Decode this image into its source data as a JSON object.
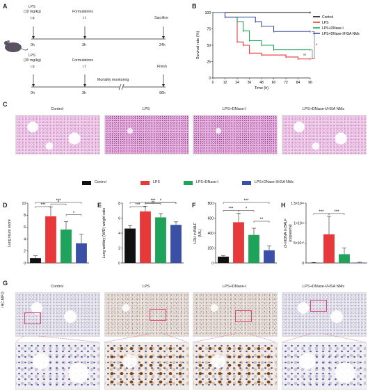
{
  "panels": {
    "a": "A",
    "b": "B",
    "c": "C",
    "d": "D",
    "e": "E",
    "f": "F",
    "g": "G",
    "h": "H"
  },
  "colors": {
    "control": "#111111",
    "lps": "#e8393a",
    "dnase": "#1fa35b",
    "nms": "#3a4fa6",
    "roi": "#e0457a"
  },
  "schematic": {
    "row1": {
      "agent": "LPS",
      "dose": "(10 mg/kg)",
      "route1": "i.p",
      "t0": "0h",
      "form": "Formulations",
      "route2": "i.t",
      "t1": "3h",
      "end": "Sacrifice",
      "t2": "24h"
    },
    "row2": {
      "agent": "LPS",
      "dose": "(30 mg/kg)",
      "route1": "i.p",
      "t0": "0h",
      "form": "Formulations",
      "route2": "i.t",
      "t1": "3h",
      "mid": "Mortality monitoring",
      "end": "Finish",
      "t2": "96h"
    }
  },
  "groups": [
    "Control",
    "LPS",
    "LPS+DNase-I",
    "LPS+DNase-I/HSA NMs"
  ],
  "ihc_label": "IHC-MPO",
  "chart_data": [
    {
      "id": "B",
      "type": "line",
      "xlabel": "Time (h)",
      "ylabel": "Survival rate (%)",
      "xlim": [
        0,
        96
      ],
      "ylim": [
        0,
        100
      ],
      "xticks": [
        0,
        12,
        24,
        36,
        48,
        60,
        72,
        84,
        96
      ],
      "yticks": [
        0,
        25,
        50,
        75,
        100
      ],
      "legend": "top-right",
      "series": [
        {
          "name": "Control",
          "points": [
            [
              0,
              100
            ],
            [
              96,
              100
            ]
          ]
        },
        {
          "name": "LPS",
          "points": [
            [
              0,
              100
            ],
            [
              12,
              93
            ],
            [
              24,
              55
            ],
            [
              30,
              50
            ],
            [
              36,
              38
            ],
            [
              48,
              35
            ],
            [
              60,
              35
            ],
            [
              72,
              32
            ],
            [
              84,
              29
            ],
            [
              96,
              29
            ]
          ]
        },
        {
          "name": "LPS+DNase-I",
          "points": [
            [
              0,
              100
            ],
            [
              12,
              93
            ],
            [
              24,
              86
            ],
            [
              30,
              72
            ],
            [
              36,
              57
            ],
            [
              48,
              50
            ],
            [
              60,
              43
            ],
            [
              72,
              43
            ],
            [
              84,
              43
            ],
            [
              96,
              43
            ]
          ]
        },
        {
          "name": "LPS+DNase-I/HSA NMs",
          "points": [
            [
              0,
              100
            ],
            [
              12,
              93
            ],
            [
              24,
              93
            ],
            [
              36,
              93
            ],
            [
              42,
              86
            ],
            [
              48,
              79
            ],
            [
              60,
              71
            ],
            [
              72,
              71
            ],
            [
              84,
              71
            ],
            [
              96,
              71
            ]
          ]
        }
      ],
      "annotations": [
        "*",
        "ns"
      ]
    },
    {
      "id": "D",
      "type": "bar",
      "ylabel": "Lung injury score",
      "ylim": [
        0,
        10
      ],
      "yticks": [
        0,
        2,
        4,
        6,
        8,
        10
      ],
      "categories": [
        "Control",
        "LPS",
        "LPS+DNase-I",
        "LPS+DNase-I/HSA NMs"
      ],
      "values": [
        0.8,
        7.8,
        5.6,
        3.3
      ],
      "errors": [
        0.4,
        1.6,
        1.3,
        1.5
      ],
      "brackets": [
        {
          "from": 0,
          "to": 1,
          "label": "***"
        },
        {
          "from": 0,
          "to": 3,
          "label": "***"
        },
        {
          "from": 1,
          "to": 2,
          "label": "*"
        },
        {
          "from": 2,
          "to": 3,
          "label": "*"
        }
      ]
    },
    {
      "id": "E",
      "type": "bar",
      "ylabel": "Lung wet/dry (W/D) weight ratio",
      "ylim": [
        0,
        8
      ],
      "yticks": [
        0,
        2,
        4,
        6,
        8
      ],
      "categories": [
        "Control",
        "LPS",
        "LPS+DNase-I",
        "LPS+DNase-I/HSA NMs"
      ],
      "values": [
        4.6,
        6.9,
        6.1,
        5.1
      ],
      "errors": [
        0.4,
        0.7,
        0.5,
        0.4
      ],
      "brackets": [
        {
          "from": 0,
          "to": 1,
          "label": "***"
        },
        {
          "from": 0,
          "to": 3,
          "label": "***"
        },
        {
          "from": 1,
          "to": 2,
          "label": "ns"
        },
        {
          "from": 1,
          "to": 3,
          "label": "*"
        }
      ]
    },
    {
      "id": "F",
      "type": "bar",
      "ylabel": "LDH in BALF",
      "yunit": "(U/L)",
      "ylim": [
        0,
        800
      ],
      "yticks": [
        0,
        200,
        400,
        600,
        800
      ],
      "categories": [
        "Control",
        "LPS",
        "LPS+DNase-I",
        "LPS+DNase-I/HSA NMs"
      ],
      "values": [
        85,
        545,
        375,
        170
      ],
      "errors": [
        15,
        120,
        90,
        60
      ],
      "brackets": [
        {
          "from": 0,
          "to": 1,
          "label": "***"
        },
        {
          "from": 0,
          "to": 3,
          "label": "***"
        },
        {
          "from": 1,
          "to": 2,
          "label": "*"
        },
        {
          "from": 2,
          "to": 3,
          "label": "**"
        }
      ]
    },
    {
      "id": "H",
      "type": "bar",
      "ylabel": "cf-mtDNA in BALF",
      "yunit": "(copies/ml)",
      "ylim": [
        0,
        150000000000
      ],
      "yticks": [
        0,
        50000000000,
        100000000000,
        150000000000
      ],
      "ytick_labels": [
        "0",
        "5×10¹⁰",
        "1×10¹¹",
        "1.5×10¹¹"
      ],
      "categories": [
        "Control",
        "LPS",
        "LPS+DNase-I",
        "LPS+DNase-I/HSA NMs"
      ],
      "values": [
        300000000,
        72000000000,
        22000000000,
        1000000000
      ],
      "errors": [
        1000000000,
        45000000000,
        16000000000,
        1000000000
      ],
      "brackets": [
        {
          "from": 0,
          "to": 1,
          "label": "***"
        },
        {
          "from": 1,
          "to": 2,
          "label": "***"
        }
      ]
    }
  ]
}
